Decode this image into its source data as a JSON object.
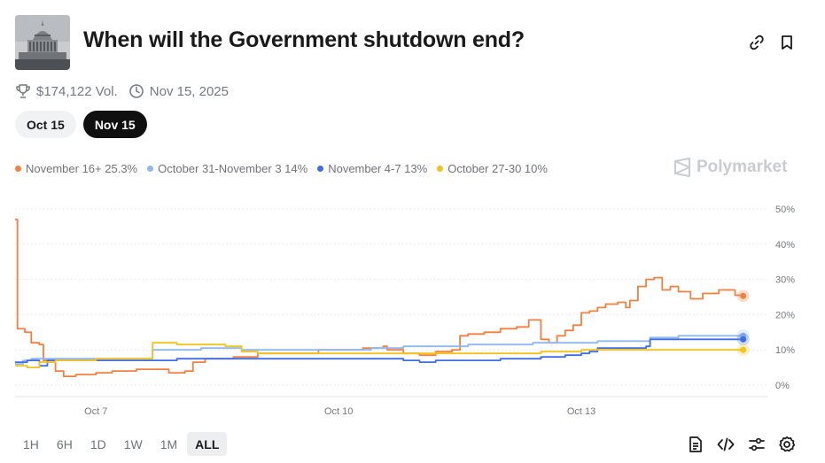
{
  "header": {
    "title": "When will the Government shutdown end?",
    "volume": "$174,122 Vol.",
    "end_date": "Nov 15, 2025"
  },
  "date_tabs": [
    {
      "label": "Oct 15",
      "active": false
    },
    {
      "label": "Nov 15",
      "active": true
    }
  ],
  "brand": "Polymarket",
  "time_ranges": [
    {
      "label": "1H",
      "active": false
    },
    {
      "label": "6H",
      "active": false
    },
    {
      "label": "1D",
      "active": false
    },
    {
      "label": "1W",
      "active": false
    },
    {
      "label": "1M",
      "active": false
    },
    {
      "label": "ALL",
      "active": true
    }
  ],
  "icons": {
    "link": "link-icon",
    "bookmark": "bookmark-icon",
    "trophy": "trophy-icon",
    "clock": "clock-icon",
    "document": "document-icon",
    "code": "code-icon",
    "sliders": "sliders-icon",
    "settings": "gear-icon"
  },
  "chart_data": {
    "type": "line",
    "xlabel": "",
    "ylabel": "",
    "ylim": [
      0,
      50
    ],
    "xlim": [
      6.0,
      15.3
    ],
    "x_ticks": [
      {
        "x": 7,
        "label": "Oct 7"
      },
      {
        "x": 10,
        "label": "Oct 10"
      },
      {
        "x": 13,
        "label": "Oct 13"
      }
    ],
    "y_ticks": [
      {
        "y": 0,
        "label": "0%"
      },
      {
        "y": 10,
        "label": "10%"
      },
      {
        "y": 20,
        "label": "20%"
      },
      {
        "y": 30,
        "label": "30%"
      },
      {
        "y": 40,
        "label": "40%"
      },
      {
        "y": 50,
        "label": "50%"
      }
    ],
    "grid": true,
    "series": [
      {
        "name": "November 16+",
        "legend": "November 16+ 25.3%",
        "color": "#f5803e",
        "points": [
          [
            6.0,
            47
          ],
          [
            6.03,
            16
          ],
          [
            6.12,
            15
          ],
          [
            6.2,
            12
          ],
          [
            6.3,
            11.5
          ],
          [
            6.35,
            7
          ],
          [
            6.45,
            7
          ],
          [
            6.5,
            4
          ],
          [
            6.6,
            2.5
          ],
          [
            6.75,
            3
          ],
          [
            7.0,
            3.5
          ],
          [
            7.2,
            4
          ],
          [
            7.5,
            4.5
          ],
          [
            7.9,
            3.5
          ],
          [
            8.1,
            4
          ],
          [
            8.2,
            6.5
          ],
          [
            8.35,
            7.5
          ],
          [
            8.7,
            8
          ],
          [
            9.0,
            9
          ],
          [
            9.3,
            9
          ],
          [
            9.5,
            9
          ],
          [
            9.75,
            10
          ],
          [
            10.0,
            10
          ],
          [
            10.3,
            10.5
          ],
          [
            10.55,
            11
          ],
          [
            10.6,
            10
          ],
          [
            10.8,
            9
          ],
          [
            11.0,
            8.5
          ],
          [
            11.2,
            9.5
          ],
          [
            11.4,
            10
          ],
          [
            11.5,
            14
          ],
          [
            11.6,
            14.5
          ],
          [
            11.8,
            15
          ],
          [
            12.0,
            16
          ],
          [
            12.2,
            16.5
          ],
          [
            12.35,
            18.5
          ],
          [
            12.5,
            13
          ],
          [
            12.6,
            12
          ],
          [
            12.7,
            14
          ],
          [
            12.8,
            15.5
          ],
          [
            12.9,
            17
          ],
          [
            13.0,
            20.5
          ],
          [
            13.1,
            21
          ],
          [
            13.2,
            22
          ],
          [
            13.3,
            23
          ],
          [
            13.45,
            23.5
          ],
          [
            13.55,
            22
          ],
          [
            13.6,
            24
          ],
          [
            13.7,
            28
          ],
          [
            13.8,
            30
          ],
          [
            13.9,
            30.5
          ],
          [
            14.0,
            27
          ],
          [
            14.1,
            28
          ],
          [
            14.2,
            26.5
          ],
          [
            14.35,
            24.5
          ],
          [
            14.5,
            26
          ],
          [
            14.7,
            27
          ],
          [
            14.9,
            25.5
          ],
          [
            15.0,
            25.3
          ]
        ]
      },
      {
        "name": "October 31-November 3",
        "legend": "October 31-November 3 14%",
        "color": "#8fb8ef",
        "points": [
          [
            6.0,
            6
          ],
          [
            6.1,
            7
          ],
          [
            6.2,
            7.5
          ],
          [
            6.4,
            7.5
          ],
          [
            6.7,
            7.5
          ],
          [
            7.0,
            7.5
          ],
          [
            7.4,
            7.5
          ],
          [
            7.6,
            7.5
          ],
          [
            7.7,
            10
          ],
          [
            8.0,
            10
          ],
          [
            8.3,
            10.5
          ],
          [
            8.6,
            10.5
          ],
          [
            8.8,
            10
          ],
          [
            9.0,
            10
          ],
          [
            9.3,
            10
          ],
          [
            9.6,
            10
          ],
          [
            10.0,
            10
          ],
          [
            10.4,
            10.5
          ],
          [
            10.8,
            11
          ],
          [
            11.2,
            11
          ],
          [
            11.6,
            11.5
          ],
          [
            12.0,
            11.5
          ],
          [
            12.4,
            12
          ],
          [
            12.8,
            12
          ],
          [
            13.2,
            12.5
          ],
          [
            13.6,
            12.5
          ],
          [
            13.85,
            13.5
          ],
          [
            14.2,
            14
          ],
          [
            14.6,
            14
          ],
          [
            15.0,
            14
          ]
        ]
      },
      {
        "name": "November 4-7",
        "legend": "November 4-7 13%",
        "color": "#3d6ee8",
        "points": [
          [
            6.0,
            6.5
          ],
          [
            6.15,
            7
          ],
          [
            6.3,
            5.5
          ],
          [
            6.4,
            7
          ],
          [
            6.6,
            7
          ],
          [
            7.0,
            7
          ],
          [
            7.5,
            7
          ],
          [
            8.0,
            7.5
          ],
          [
            8.5,
            7.5
          ],
          [
            9.0,
            7.5
          ],
          [
            9.5,
            7.5
          ],
          [
            10.0,
            7.5
          ],
          [
            10.5,
            7.5
          ],
          [
            10.8,
            7
          ],
          [
            11.0,
            6.5
          ],
          [
            11.2,
            7
          ],
          [
            11.5,
            7
          ],
          [
            12.0,
            7.5
          ],
          [
            12.5,
            8
          ],
          [
            12.8,
            8.5
          ],
          [
            13.0,
            9
          ],
          [
            13.1,
            9.5
          ],
          [
            13.2,
            10.5
          ],
          [
            13.5,
            10.5
          ],
          [
            13.8,
            11
          ],
          [
            13.85,
            13
          ],
          [
            14.2,
            13
          ],
          [
            14.6,
            13
          ],
          [
            15.0,
            13
          ]
        ]
      },
      {
        "name": "October 27-30",
        "legend": "October 27-30 10%",
        "color": "#f4c21a",
        "points": [
          [
            6.0,
            5.5
          ],
          [
            6.15,
            5
          ],
          [
            6.3,
            6.5
          ],
          [
            6.5,
            7
          ],
          [
            6.8,
            7
          ],
          [
            7.0,
            7.5
          ],
          [
            7.5,
            7.5
          ],
          [
            7.65,
            7.5
          ],
          [
            7.7,
            12
          ],
          [
            8.0,
            11.5
          ],
          [
            8.3,
            11.5
          ],
          [
            8.6,
            11
          ],
          [
            8.8,
            9.5
          ],
          [
            9.0,
            9
          ],
          [
            9.3,
            9
          ],
          [
            9.6,
            9
          ],
          [
            10.0,
            9
          ],
          [
            10.5,
            9
          ],
          [
            11.0,
            9
          ],
          [
            11.5,
            9
          ],
          [
            12.0,
            9
          ],
          [
            12.5,
            9.5
          ],
          [
            13.0,
            10
          ],
          [
            13.5,
            10
          ],
          [
            14.0,
            10
          ],
          [
            14.5,
            10
          ],
          [
            15.0,
            10
          ]
        ]
      }
    ]
  }
}
